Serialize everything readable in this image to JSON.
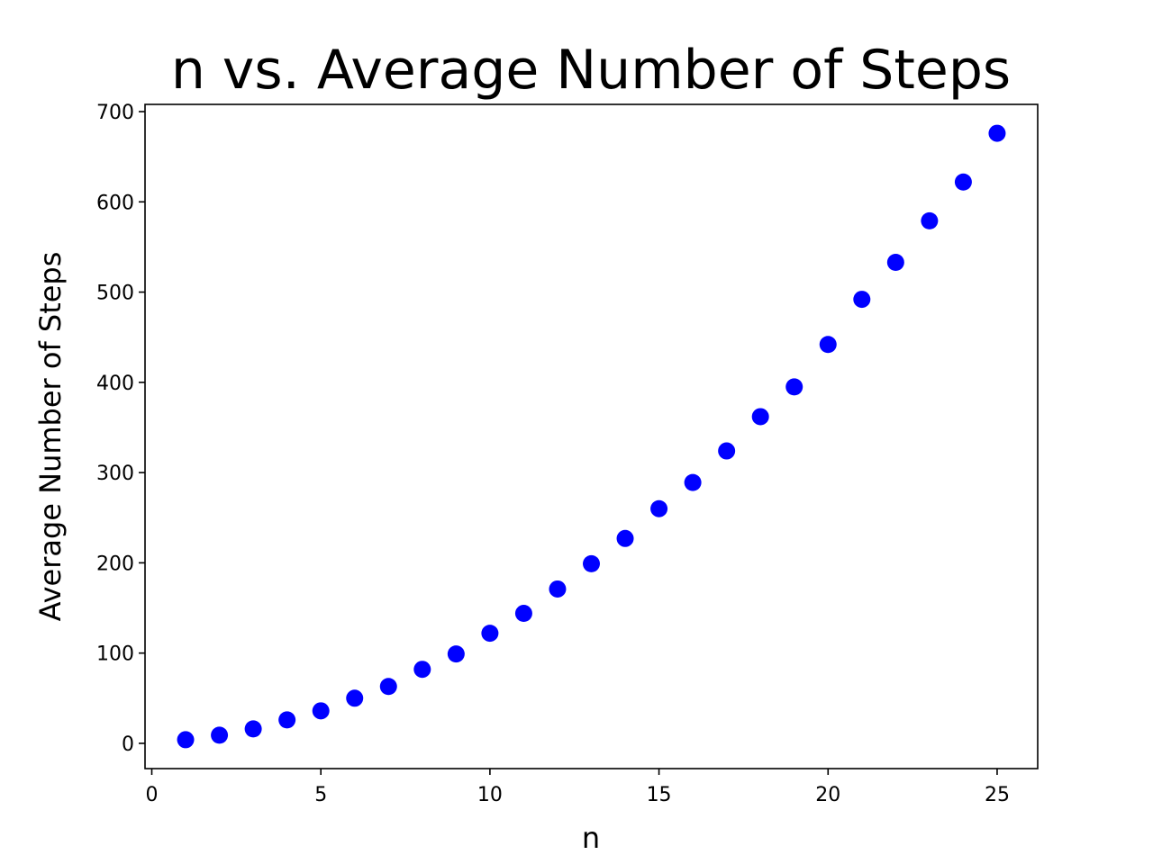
{
  "chart_data": {
    "type": "scatter",
    "title": "n vs. Average Number of Steps",
    "xlabel": "n",
    "ylabel": "Average Number of Steps",
    "xlim": [
      -0.2,
      26.2
    ],
    "ylim": [
      -28,
      708
    ],
    "xticks": [
      0,
      5,
      10,
      15,
      20,
      25
    ],
    "yticks": [
      0,
      100,
      200,
      300,
      400,
      500,
      600,
      700
    ],
    "grid": false,
    "marker_color": "#0000ff",
    "series": [
      {
        "x": [
          1,
          2,
          3,
          4,
          5,
          6,
          7,
          8,
          9,
          10,
          11,
          12,
          13,
          14,
          15,
          16,
          17,
          18,
          19,
          20,
          21,
          22,
          23,
          24,
          25
        ],
        "y": [
          4,
          9,
          16,
          26,
          36,
          50,
          63,
          82,
          99,
          122,
          144,
          171,
          199,
          227,
          260,
          289,
          324,
          362,
          395,
          442,
          492,
          533,
          579,
          622,
          676
        ]
      }
    ]
  }
}
